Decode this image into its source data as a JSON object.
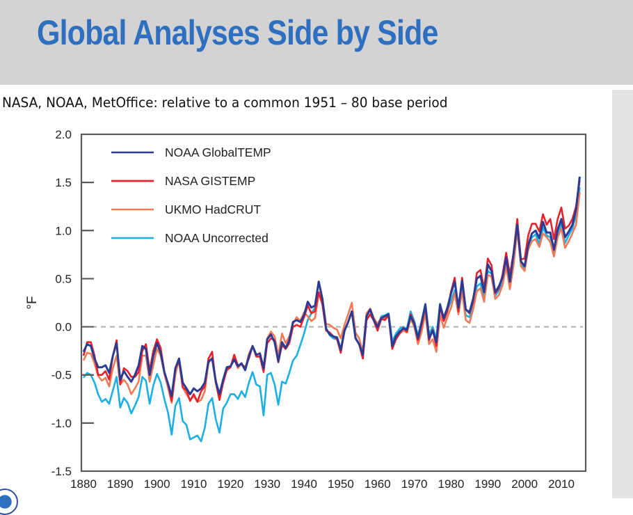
{
  "slide": {
    "title": "Global Analyses Side by Side",
    "subtitle": "NASA, NOAA, MetOffice: relative to a common 1951 – 80 base period",
    "logo_icon": "noaa-logo-icon"
  },
  "colors": {
    "title": "#2e6fc0",
    "title_bar": "#d3d3d3",
    "side_panel": "#e4e4e4"
  },
  "chart_data": {
    "type": "line",
    "title": "",
    "xlabel": "",
    "ylabel": "°F",
    "xlim": [
      1880,
      2015
    ],
    "ylim": [
      -1.5,
      2.0
    ],
    "xticks": [
      1880,
      1890,
      1900,
      1910,
      1920,
      1930,
      1940,
      1950,
      1960,
      1970,
      1980,
      1990,
      2000,
      2010
    ],
    "xtick_labels": [
      "1880",
      "1890",
      "1900",
      "1910",
      "1920",
      "1930",
      "1940",
      "1950",
      "1960",
      "1970",
      "1980",
      "1990",
      "2000",
      "2010"
    ],
    "yticks": [
      -1.5,
      -1.0,
      -0.5,
      0.0,
      0.5,
      1.0,
      1.5,
      2.0
    ],
    "ytick_labels": [
      "-1.5",
      "-1.0",
      "-0.5",
      "0.0",
      "0.5",
      "1.0",
      "1.5",
      "2.0"
    ],
    "reference_line": {
      "y": 0.0,
      "style": "dashed",
      "color": "#b4b4b4"
    },
    "grid": false,
    "legend_position": "top-left",
    "x": [
      1880,
      1881,
      1882,
      1883,
      1884,
      1885,
      1886,
      1887,
      1888,
      1889,
      1890,
      1891,
      1892,
      1893,
      1894,
      1895,
      1896,
      1897,
      1898,
      1899,
      1900,
      1901,
      1902,
      1903,
      1904,
      1905,
      1906,
      1907,
      1908,
      1909,
      1910,
      1911,
      1912,
      1913,
      1914,
      1915,
      1916,
      1917,
      1918,
      1919,
      1920,
      1921,
      1922,
      1923,
      1924,
      1925,
      1926,
      1927,
      1928,
      1929,
      1930,
      1931,
      1932,
      1933,
      1934,
      1935,
      1936,
      1937,
      1938,
      1939,
      1940,
      1941,
      1942,
      1943,
      1944,
      1945,
      1946,
      1947,
      1948,
      1949,
      1950,
      1951,
      1952,
      1953,
      1954,
      1955,
      1956,
      1957,
      1958,
      1959,
      1960,
      1961,
      1962,
      1963,
      1964,
      1965,
      1966,
      1967,
      1968,
      1969,
      1970,
      1971,
      1972,
      1973,
      1974,
      1975,
      1976,
      1977,
      1978,
      1979,
      1980,
      1981,
      1982,
      1983,
      1984,
      1985,
      1986,
      1987,
      1988,
      1989,
      1990,
      1991,
      1992,
      1993,
      1994,
      1995,
      1996,
      1997,
      1998,
      1999,
      2000,
      2001,
      2002,
      2003,
      2004,
      2005,
      2006,
      2007,
      2008,
      2009,
      2010,
      2011,
      2012,
      2013,
      2014,
      2015
    ],
    "series": [
      {
        "name": "NOAA GlobalTEMP",
        "color": "#2b3a93",
        "values": [
          -0.26,
          -0.18,
          -0.2,
          -0.33,
          -0.42,
          -0.42,
          -0.4,
          -0.48,
          -0.3,
          -0.17,
          -0.55,
          -0.46,
          -0.52,
          -0.57,
          -0.5,
          -0.4,
          -0.2,
          -0.23,
          -0.5,
          -0.3,
          -0.17,
          -0.27,
          -0.47,
          -0.59,
          -0.72,
          -0.43,
          -0.33,
          -0.58,
          -0.64,
          -0.7,
          -0.64,
          -0.67,
          -0.64,
          -0.58,
          -0.36,
          -0.33,
          -0.57,
          -0.7,
          -0.55,
          -0.42,
          -0.41,
          -0.34,
          -0.41,
          -0.38,
          -0.45,
          -0.31,
          -0.2,
          -0.29,
          -0.28,
          -0.43,
          -0.13,
          -0.08,
          -0.16,
          -0.36,
          -0.16,
          -0.22,
          -0.14,
          0.05,
          0.07,
          0.05,
          0.12,
          0.26,
          0.2,
          0.22,
          0.47,
          0.29,
          -0.02,
          -0.08,
          -0.1,
          -0.11,
          -0.24,
          -0.04,
          0.05,
          0.16,
          -0.12,
          -0.18,
          -0.29,
          0.11,
          0.18,
          0.07,
          0.0,
          0.09,
          0.11,
          0.13,
          -0.2,
          -0.1,
          -0.05,
          -0.02,
          -0.03,
          0.11,
          0.03,
          -0.12,
          0.05,
          0.23,
          -0.12,
          -0.04,
          -0.16,
          0.23,
          0.09,
          0.2,
          0.35,
          0.47,
          0.2,
          0.48,
          0.18,
          0.15,
          0.29,
          0.5,
          0.53,
          0.36,
          0.65,
          0.58,
          0.36,
          0.42,
          0.51,
          0.72,
          0.47,
          0.76,
          1.06,
          0.68,
          0.63,
          0.85,
          0.97,
          1.0,
          0.92,
          1.09,
          0.98,
          0.98,
          0.8,
          1.01,
          1.12,
          0.93,
          0.99,
          1.06,
          1.22,
          1.56
        ]
      },
      {
        "name": "NASA GISTEMP",
        "color": "#e8212b",
        "values": [
          -0.3,
          -0.16,
          -0.16,
          -0.3,
          -0.5,
          -0.5,
          -0.46,
          -0.55,
          -0.3,
          -0.14,
          -0.6,
          -0.43,
          -0.46,
          -0.52,
          -0.52,
          -0.47,
          -0.25,
          -0.18,
          -0.46,
          -0.25,
          -0.13,
          -0.22,
          -0.47,
          -0.6,
          -0.77,
          -0.43,
          -0.36,
          -0.63,
          -0.66,
          -0.77,
          -0.7,
          -0.78,
          -0.67,
          -0.62,
          -0.33,
          -0.26,
          -0.58,
          -0.76,
          -0.58,
          -0.45,
          -0.42,
          -0.29,
          -0.4,
          -0.39,
          -0.42,
          -0.33,
          -0.2,
          -0.31,
          -0.31,
          -0.47,
          -0.17,
          -0.12,
          -0.14,
          -0.37,
          -0.19,
          -0.23,
          -0.17,
          0.0,
          0.02,
          0.0,
          0.1,
          0.22,
          0.14,
          0.16,
          0.36,
          0.23,
          -0.04,
          -0.06,
          -0.1,
          -0.13,
          -0.27,
          -0.04,
          0.05,
          0.16,
          -0.12,
          -0.18,
          -0.33,
          0.07,
          0.13,
          0.06,
          -0.04,
          0.08,
          0.07,
          0.12,
          -0.23,
          -0.13,
          -0.07,
          -0.01,
          -0.05,
          0.13,
          0.04,
          -0.14,
          0.02,
          0.22,
          -0.14,
          -0.03,
          -0.2,
          0.2,
          0.06,
          0.16,
          0.37,
          0.51,
          0.16,
          0.51,
          0.18,
          0.14,
          0.26,
          0.56,
          0.59,
          0.4,
          0.71,
          0.64,
          0.35,
          0.4,
          0.54,
          0.77,
          0.54,
          0.77,
          1.12,
          0.7,
          0.71,
          0.95,
          1.07,
          1.07,
          0.99,
          1.17,
          1.06,
          1.12,
          0.91,
          1.12,
          1.24,
          1.02,
          1.05,
          1.12,
          1.25,
          1.52
        ]
      },
      {
        "name": "UKMO HadCRUT",
        "color": "#f07a55",
        "values": [
          -0.35,
          -0.27,
          -0.28,
          -0.38,
          -0.51,
          -0.56,
          -0.53,
          -0.62,
          -0.43,
          -0.3,
          -0.6,
          -0.55,
          -0.6,
          -0.7,
          -0.64,
          -0.57,
          -0.3,
          -0.3,
          -0.57,
          -0.4,
          -0.23,
          -0.3,
          -0.49,
          -0.63,
          -0.79,
          -0.5,
          -0.33,
          -0.63,
          -0.7,
          -0.76,
          -0.72,
          -0.78,
          -0.76,
          -0.67,
          -0.38,
          -0.32,
          -0.55,
          -0.73,
          -0.58,
          -0.44,
          -0.41,
          -0.33,
          -0.43,
          -0.38,
          -0.44,
          -0.28,
          -0.2,
          -0.3,
          -0.27,
          -0.43,
          -0.12,
          -0.05,
          -0.1,
          -0.3,
          -0.07,
          -0.17,
          -0.1,
          0.03,
          0.1,
          0.06,
          0.15,
          0.11,
          0.06,
          0.09,
          0.34,
          0.29,
          0.03,
          0.02,
          -0.01,
          -0.03,
          -0.12,
          0.02,
          0.13,
          0.25,
          -0.06,
          -0.12,
          -0.26,
          0.14,
          0.19,
          0.09,
          0.03,
          0.1,
          0.09,
          0.11,
          -0.22,
          -0.12,
          -0.07,
          -0.04,
          -0.06,
          0.08,
          0.0,
          -0.18,
          -0.05,
          0.14,
          -0.18,
          -0.13,
          -0.26,
          0.12,
          -0.01,
          0.1,
          0.2,
          0.35,
          0.13,
          0.37,
          0.07,
          0.04,
          0.18,
          0.37,
          0.4,
          0.26,
          0.54,
          0.52,
          0.29,
          0.33,
          0.43,
          0.63,
          0.39,
          0.64,
          1.0,
          0.63,
          0.58,
          0.8,
          0.89,
          0.91,
          0.83,
          0.97,
          0.93,
          0.88,
          0.73,
          0.93,
          1.02,
          0.82,
          0.89,
          0.97,
          1.06,
          1.4
        ]
      },
      {
        "name": "NOAA Uncorrected",
        "color": "#1aafe6",
        "values": [
          -0.53,
          -0.48,
          -0.5,
          -0.58,
          -0.7,
          -0.78,
          -0.75,
          -0.8,
          -0.66,
          -0.52,
          -0.84,
          -0.74,
          -0.79,
          -0.9,
          -0.82,
          -0.73,
          -0.52,
          -0.56,
          -0.8,
          -0.61,
          -0.49,
          -0.58,
          -0.75,
          -0.89,
          -1.12,
          -0.82,
          -0.74,
          -0.98,
          -1.02,
          -1.17,
          -1.15,
          -1.13,
          -1.19,
          -1.05,
          -0.8,
          -0.74,
          -0.96,
          -1.1,
          -0.85,
          -0.79,
          -0.7,
          -0.7,
          -0.75,
          -0.67,
          -0.73,
          -0.58,
          -0.47,
          -0.6,
          -0.62,
          -0.92,
          -0.5,
          -0.48,
          -0.6,
          -0.81,
          -0.57,
          -0.59,
          -0.48,
          -0.35,
          -0.3,
          -0.19,
          -0.07,
          0.07,
          0.14,
          0.2,
          0.35,
          0.26,
          -0.02,
          -0.09,
          -0.12,
          -0.13,
          -0.26,
          -0.05,
          0.05,
          0.16,
          -0.11,
          -0.18,
          -0.28,
          0.11,
          0.18,
          0.07,
          0.0,
          0.11,
          0.12,
          0.14,
          -0.15,
          -0.07,
          -0.02,
          0.0,
          -0.02,
          0.16,
          0.06,
          -0.09,
          0.06,
          0.24,
          -0.08,
          0.0,
          -0.12,
          0.24,
          0.06,
          0.17,
          0.27,
          0.38,
          0.15,
          0.39,
          0.12,
          0.1,
          0.22,
          0.42,
          0.45,
          0.3,
          0.58,
          0.55,
          0.32,
          0.38,
          0.47,
          0.69,
          0.43,
          0.7,
          1.03,
          0.66,
          0.6,
          0.82,
          0.93,
          0.96,
          0.86,
          1.03,
          0.95,
          0.93,
          0.75,
          0.97,
          1.07,
          0.87,
          0.95,
          1.02,
          1.16,
          1.45
        ]
      }
    ]
  }
}
